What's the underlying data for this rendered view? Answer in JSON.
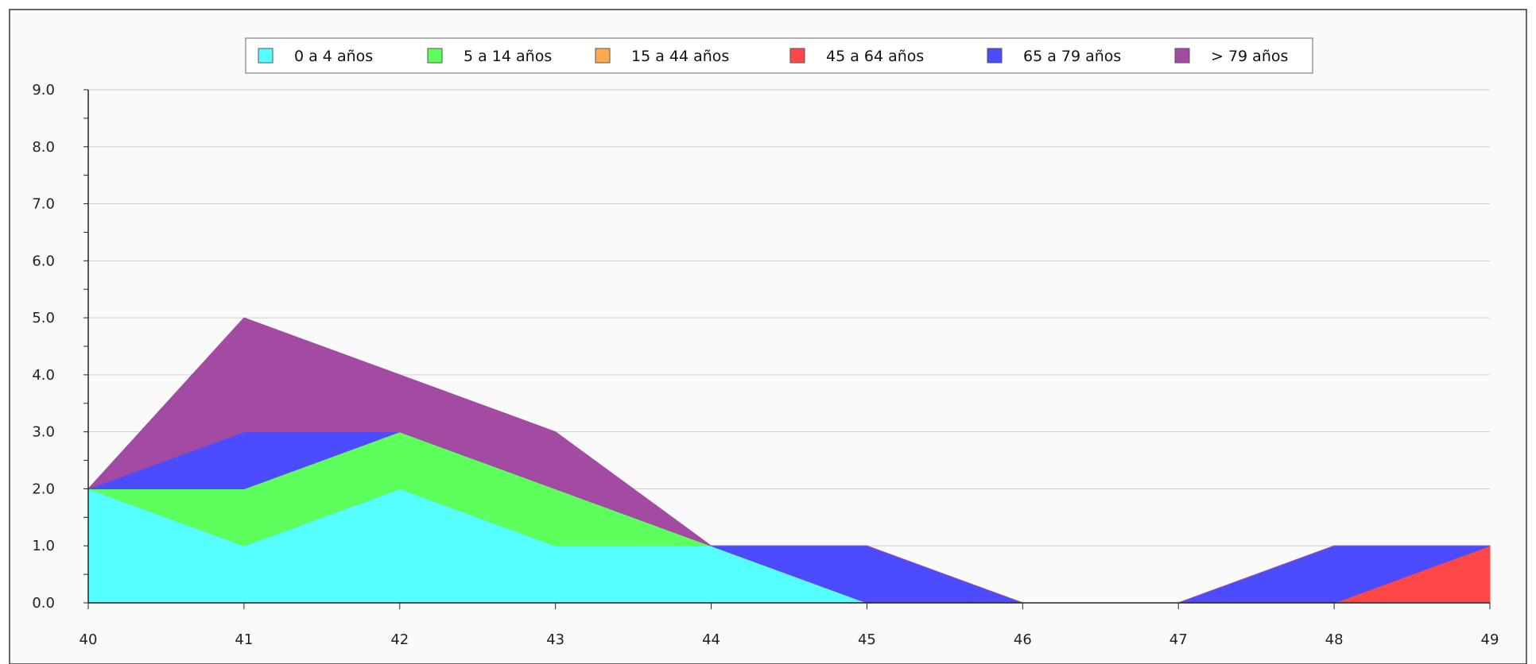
{
  "chart_data": {
    "type": "area",
    "stacked": true,
    "title": "",
    "xlabel": "",
    "ylabel": "",
    "x": [
      40,
      41,
      42,
      43,
      44,
      45,
      46,
      47,
      48,
      49
    ],
    "xlim": [
      40,
      49
    ],
    "ylim": [
      0,
      9
    ],
    "y_ticks": [
      "0.0",
      "1.0",
      "2.0",
      "3.0",
      "4.0",
      "5.0",
      "6.0",
      "7.0",
      "8.0",
      "9.0"
    ],
    "x_ticks": [
      "40",
      "41",
      "42",
      "43",
      "44",
      "45",
      "46",
      "47",
      "48",
      "49"
    ],
    "grid": true,
    "legend_position": "top-center",
    "series": [
      {
        "name": "0 a 4 años",
        "color": "#55ffff",
        "values": [
          2,
          1,
          2,
          1,
          1,
          0,
          0,
          0,
          0,
          0
        ]
      },
      {
        "name": "5 a 14 años",
        "color": "#5cff5c",
        "values": [
          0,
          1,
          1,
          1,
          0,
          0,
          0,
          0,
          0,
          0
        ]
      },
      {
        "name": "15 a 44 años",
        "color": "#ffa94d",
        "values": [
          0,
          0,
          0,
          0,
          0,
          0,
          0,
          0,
          0,
          0
        ]
      },
      {
        "name": "45 a 64 años",
        "color": "#ff4747",
        "values": [
          0,
          0,
          0,
          0,
          0,
          0,
          0,
          0,
          0,
          1
        ]
      },
      {
        "name": "65 a 79 años",
        "color": "#4b4bff",
        "values": [
          0,
          1,
          0,
          0,
          0,
          1,
          0,
          0,
          1,
          0
        ]
      },
      {
        "name": "> 79 años",
        "color": "#a34aa3",
        "values": [
          0,
          2,
          1,
          1,
          0,
          0,
          0,
          0,
          0,
          0
        ]
      }
    ]
  }
}
